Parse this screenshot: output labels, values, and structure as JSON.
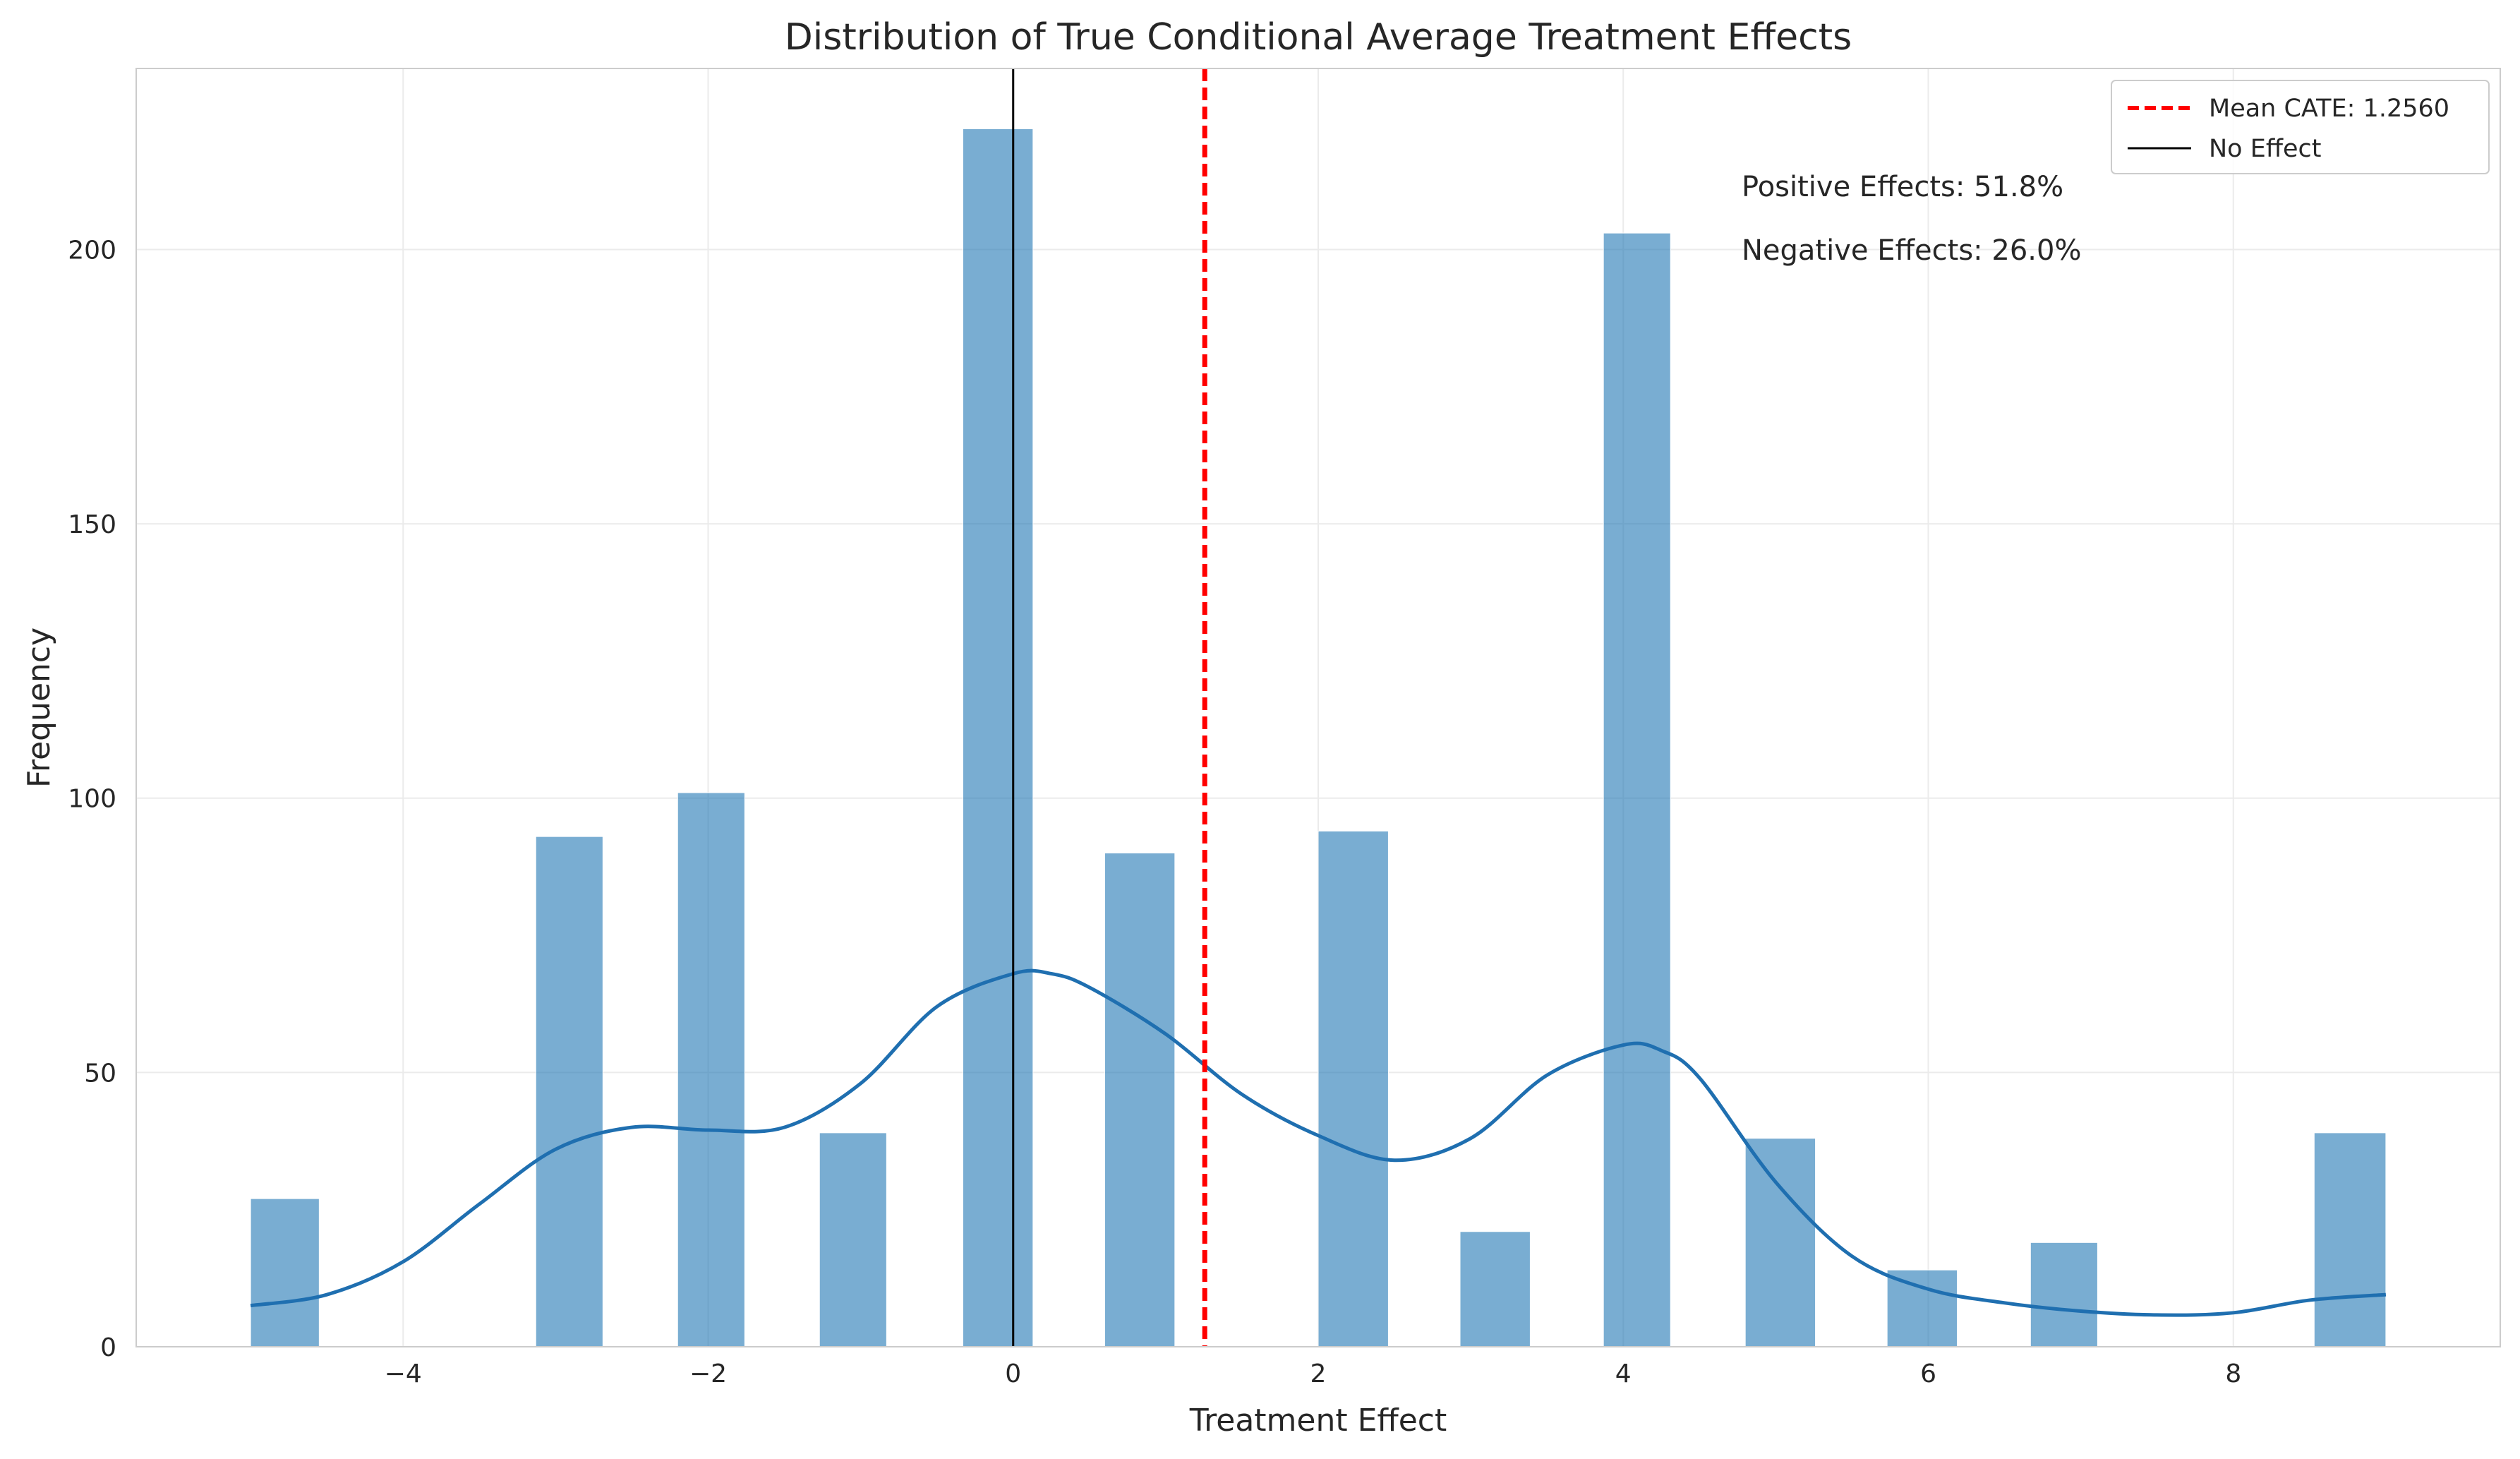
{
  "chart_data": {
    "type": "bar",
    "title": "Distribution of True Conditional Average Treatment Effects",
    "xlabel": "Treatment Effect",
    "ylabel": "Frequency",
    "xlim": [
      -5.75,
      9.75
    ],
    "ylim": [
      0,
      233
    ],
    "xticks": [
      -4,
      -2,
      0,
      2,
      4,
      6,
      8
    ],
    "xtick_labels": [
      "−4",
      "−2",
      "0",
      "2",
      "4",
      "6",
      "8"
    ],
    "yticks": [
      0,
      50,
      100,
      150,
      200
    ],
    "bins": [
      {
        "x0": -5.0,
        "x1": -4.55,
        "count": 27
      },
      {
        "x0": -3.13,
        "x1": -2.69,
        "count": 93
      },
      {
        "x0": -2.2,
        "x1": -1.76,
        "count": 101
      },
      {
        "x0": -1.27,
        "x1": -0.83,
        "count": 39
      },
      {
        "x0": -0.33,
        "x1": 0.13,
        "count": 222
      },
      {
        "x0": 0.6,
        "x1": 1.06,
        "count": 90
      },
      {
        "x0": 2.0,
        "x1": 2.46,
        "count": 94
      },
      {
        "x0": 2.93,
        "x1": 3.39,
        "count": 21
      },
      {
        "x0": 3.87,
        "x1": 4.31,
        "count": 203
      },
      {
        "x0": 4.8,
        "x1": 5.26,
        "count": 38
      },
      {
        "x0": 5.73,
        "x1": 6.19,
        "count": 14
      },
      {
        "x0": 6.67,
        "x1": 7.11,
        "count": 19
      },
      {
        "x0": 8.53,
        "x1": 9.0,
        "count": 39
      }
    ],
    "kde": {
      "x": [
        -5.0,
        -4.5,
        -4.0,
        -3.5,
        -3.0,
        -2.5,
        -2.0,
        -1.5,
        -1.0,
        -0.5,
        0.0,
        0.25,
        0.5,
        1.0,
        1.5,
        2.0,
        2.5,
        3.0,
        3.5,
        4.0,
        4.25,
        4.5,
        5.0,
        5.5,
        6.0,
        6.5,
        7.0,
        7.5,
        8.0,
        8.5,
        9.0
      ],
      "y": [
        7.5,
        9.5,
        15.5,
        26.0,
        36.0,
        40.0,
        39.5,
        40.0,
        48.0,
        62.0,
        68.0,
        68.0,
        65.5,
        57.0,
        46.0,
        38.5,
        34.0,
        38.0,
        49.5,
        55.0,
        54.0,
        49.0,
        30.0,
        16.5,
        10.5,
        8.0,
        6.5,
        5.8,
        6.2,
        8.5,
        9.5
      ]
    },
    "mean_line": {
      "x": 1.256,
      "label": "Mean CATE: 1.2560"
    },
    "zero_line": {
      "x": 0,
      "label": "No Effect"
    },
    "annotations": [
      "Positive Effects: 51.8%",
      "Negative Effects: 26.0%"
    ],
    "legend_position": "top-right",
    "grid": true,
    "colors": {
      "bars": "#1f77b4",
      "kde": "#1f6fb0",
      "mean": "#ff0000",
      "zero": "#000000",
      "grid": "#ebebeb",
      "spine": "#cccccc"
    }
  }
}
